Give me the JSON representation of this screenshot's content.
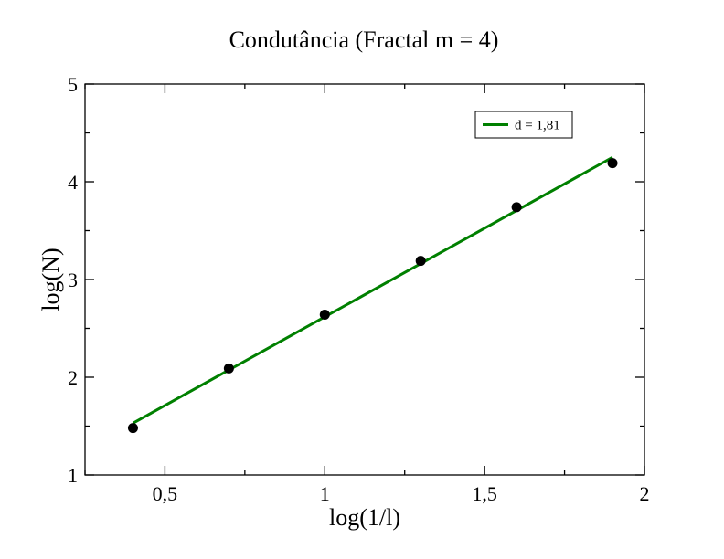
{
  "chart_data": {
    "type": "scatter",
    "title": "Condutância (Fractal m = 4)",
    "xlabel": "log(1/l)",
    "ylabel": "log(N)",
    "xlim": [
      0.25,
      2
    ],
    "ylim": [
      1,
      5
    ],
    "x_ticks": [
      {
        "value": 0.5,
        "label": "0,5"
      },
      {
        "value": 1,
        "label": "1"
      },
      {
        "value": 1.5,
        "label": "1,5"
      },
      {
        "value": 2,
        "label": "2"
      }
    ],
    "y_ticks": [
      {
        "value": 1,
        "label": "1"
      },
      {
        "value": 2,
        "label": "2"
      },
      {
        "value": 3,
        "label": "3"
      },
      {
        "value": 4,
        "label": "4"
      },
      {
        "value": 5,
        "label": "5"
      }
    ],
    "x_minor_step": 0.25,
    "y_minor_step": 0.5,
    "grid": false,
    "series": [
      {
        "kind": "points",
        "color": "#000000",
        "marker": "circle",
        "x": [
          0.4,
          0.7,
          1.0,
          1.3,
          1.6,
          1.9
        ],
        "y": [
          1.48,
          2.09,
          2.64,
          3.19,
          3.74,
          4.19
        ]
      },
      {
        "kind": "line",
        "name": "d = 1,81",
        "color": "#008000",
        "x": [
          0.4,
          1.9
        ],
        "y": [
          1.53,
          4.25
        ]
      }
    ],
    "legend": {
      "placement": "top-right",
      "entries": [
        "d = 1,81"
      ]
    }
  }
}
